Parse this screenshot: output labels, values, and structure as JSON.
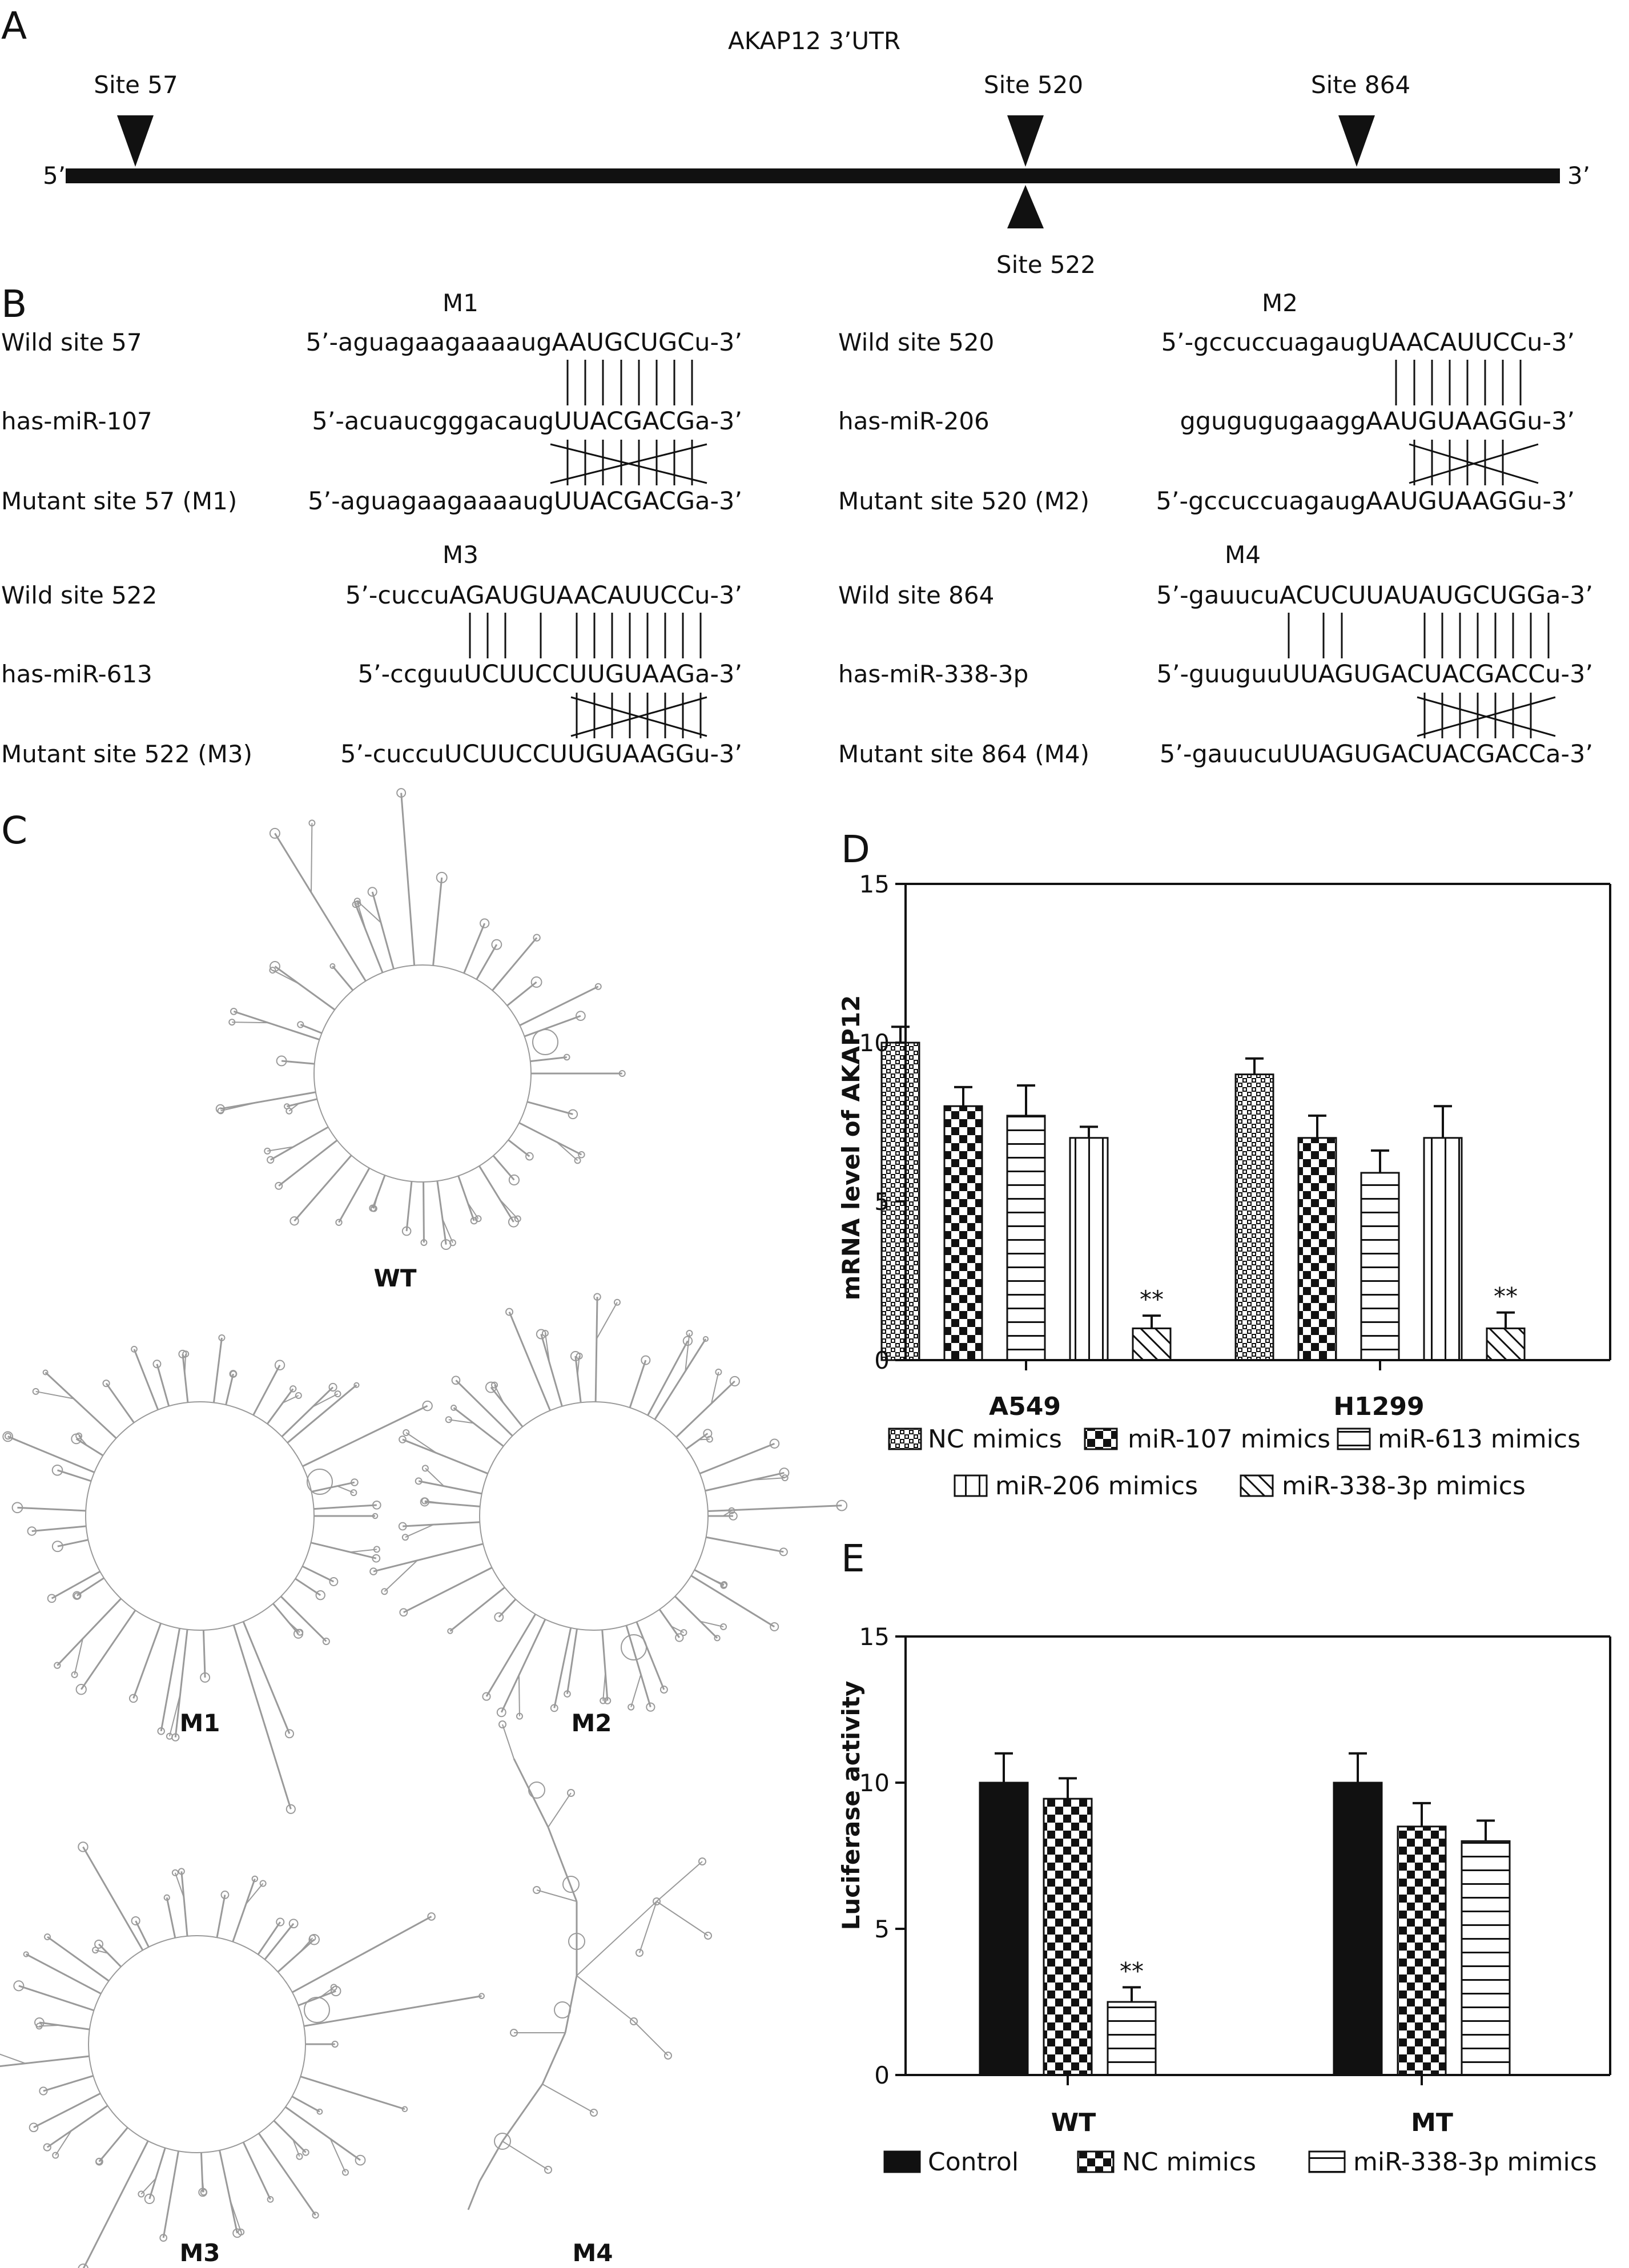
{
  "panels": {
    "A": "A",
    "B": "B",
    "C": "C",
    "D": "D",
    "E": "E"
  },
  "panel_a": {
    "title": "AKAP12 3’UTR",
    "five_prime": "5’",
    "three_prime": "3’",
    "sites": [
      {
        "label": "Site 57",
        "side": "top"
      },
      {
        "label": "Site 520",
        "side": "top"
      },
      {
        "label": "Site 864",
        "side": "top"
      },
      {
        "label": "Site 522",
        "side": "bottom"
      }
    ]
  },
  "panel_b": {
    "blocks": [
      {
        "mutant": "M1",
        "rows": [
          {
            "name": "Wild site 57",
            "seq": "5’-aguagaagaaaaugAAUGCUGCu-3’"
          },
          {
            "name": "has-miR-107",
            "seq": "5’-acuaucgggacaugUUACGACGa-3’"
          },
          {
            "name": "Mutant site 57 (M1)",
            "seq": "5’-aguagaagaaaaugUUACGACGa-3’"
          }
        ]
      },
      {
        "mutant": "M2",
        "rows": [
          {
            "name": "Wild site 520",
            "seq": "5’-gccuccuagaugUAACAUUCCu-3’"
          },
          {
            "name": "has-miR-206",
            "seq": "ggugugugaaggAAUGUAAGGu-3’"
          },
          {
            "name": "Mutant site 520 (M2)",
            "seq": "5’-gccuccuagaugAAUGUAAGGu-3’"
          }
        ]
      },
      {
        "mutant": "M3",
        "rows": [
          {
            "name": "Wild site 522",
            "seq": "5’-cuccuAGAUGUAACAUUCCu-3’"
          },
          {
            "name": "has-miR-613",
            "seq": "5’-ccguuUCUUCCUUGUAAGa-3’"
          },
          {
            "name": "Mutant site 522 (M3)",
            "seq": "5’-cuccuUCUUCCUUGUAAGGu-3’"
          }
        ]
      },
      {
        "mutant": "M4",
        "rows": [
          {
            "name": "Wild site 864",
            "seq": "5’-gauucuACUCUUAUAUGCUGGa-3’"
          },
          {
            "name": "has-miR-338-3p",
            "seq": "5’-guuguuUUAGUGACUACGACCu-3’"
          },
          {
            "name": "Mutant site 864 (M4)",
            "seq": "5’-gauucuUUAGUGACUACGACCa-3’"
          }
        ]
      }
    ]
  },
  "panel_c": {
    "structures": [
      "WT",
      "M1",
      "M2",
      "M3",
      "M4"
    ]
  },
  "colors": {
    "ink": "#111111",
    "structure": "#9a9a9a",
    "background": "#ffffff"
  },
  "chart_data": [
    {
      "panel": "D",
      "type": "bar",
      "ylabel": "mRNA level of AKAP12",
      "ylim": [
        0,
        15
      ],
      "yticks": [
        0,
        5,
        10,
        15
      ],
      "categories": [
        "A549",
        "H1299"
      ],
      "series": [
        {
          "name": "NC mimics",
          "pattern": "crosshatch",
          "values": [
            10.0,
            9.0
          ],
          "errors": [
            0.5,
            0.5
          ]
        },
        {
          "name": "miR-107 mimics",
          "pattern": "checker",
          "values": [
            8.0,
            7.0
          ],
          "errors": [
            0.6,
            0.7
          ]
        },
        {
          "name": "miR-613 mimics",
          "pattern": "horizontal",
          "values": [
            7.7,
            5.9
          ],
          "errors": [
            0.95,
            0.7
          ]
        },
        {
          "name": "miR-206 mimics",
          "pattern": "vertical",
          "values": [
            7.0,
            7.0
          ],
          "errors": [
            0.35,
            1.0
          ]
        },
        {
          "name": "miR-338-3p mimics",
          "pattern": "diagonal",
          "values": [
            1.0,
            1.0
          ],
          "errors": [
            0.4,
            0.5
          ]
        }
      ],
      "annotations": [
        {
          "text": "**",
          "category": "A549",
          "series": "miR-338-3p mimics"
        },
        {
          "text": "**",
          "category": "H1299",
          "series": "miR-338-3p mimics"
        }
      ],
      "legend": "bottom"
    },
    {
      "panel": "E",
      "type": "bar",
      "ylabel": "Luciferase activity",
      "ylim": [
        0,
        15
      ],
      "yticks": [
        0,
        5,
        10,
        15
      ],
      "categories": [
        "WT",
        "MT"
      ],
      "series": [
        {
          "name": "Control",
          "pattern": "solid",
          "values": [
            10.0,
            10.0
          ],
          "errors": [
            1.0,
            1.0
          ]
        },
        {
          "name": "NC mimics",
          "pattern": "checker",
          "values": [
            9.45,
            8.5
          ],
          "errors": [
            0.7,
            0.8
          ]
        },
        {
          "name": "miR-338-3p mimics",
          "pattern": "horizontal",
          "values": [
            2.5,
            8.0
          ],
          "errors": [
            0.5,
            0.7
          ]
        }
      ],
      "annotations": [
        {
          "text": "**",
          "category": "WT",
          "series": "miR-338-3p mimics"
        }
      ],
      "legend": "bottom"
    }
  ]
}
